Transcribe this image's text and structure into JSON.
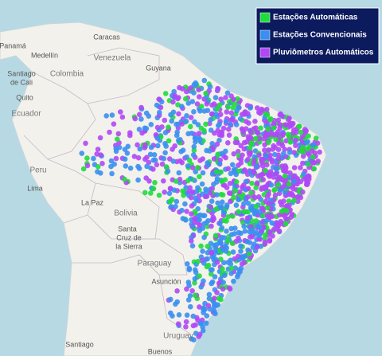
{
  "map": {
    "places": [
      "Panamá",
      "Caracas",
      "Medellín",
      "Venezuela",
      "Guyana",
      "Colombia",
      "Santiago",
      "de Cali",
      "Quito",
      "Ecuador",
      "Peru",
      "Lima",
      "La Paz",
      "Bolivia",
      "Santa",
      "Cruz de",
      "la Sierra",
      "Paraguay",
      "Asunción",
      "Uruguay",
      "Santiago",
      "Buenos"
    ]
  },
  "legend": {
    "items": [
      {
        "label": "Estações Automáticas",
        "color": "#1fdc3c"
      },
      {
        "label": "Estações Convencionais",
        "color": "#3a8ff0"
      },
      {
        "label": "Pluviômetros Automáticos",
        "color": "#b048f5"
      }
    ]
  }
}
